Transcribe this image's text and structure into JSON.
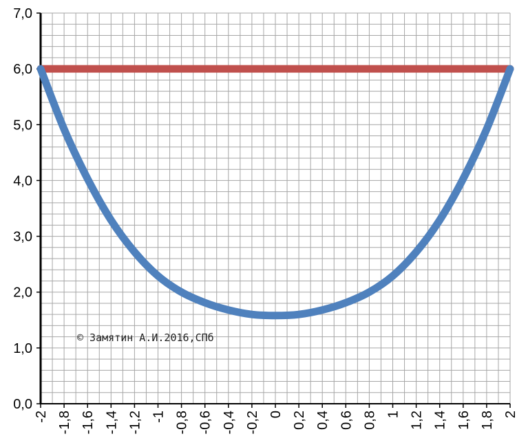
{
  "chart_data": {
    "type": "line",
    "title": "",
    "xlabel": "",
    "ylabel": "",
    "x": [
      -2,
      -1.8,
      -1.6,
      -1.4,
      -1.2,
      -1,
      -0.8,
      -0.6,
      -0.4,
      -0.2,
      0,
      0.2,
      0.4,
      0.6,
      0.8,
      1,
      1.2,
      1.4,
      1.6,
      1.8,
      2
    ],
    "x_tick_labels": [
      "-2",
      "-1,8",
      "-1,6",
      "-1,4",
      "-1,2",
      "-1",
      "-0,8",
      "-0,6",
      "-0,4",
      "-0,2",
      "0",
      "0,2",
      "0,4",
      "0,6",
      "0,8",
      "1",
      "1,2",
      "1,4",
      "1,6",
      "1,8",
      "2"
    ],
    "y_ticks": [
      0,
      1,
      2,
      3,
      4,
      5,
      6,
      7
    ],
    "y_tick_labels": [
      "0,0",
      "1,0",
      "2,0",
      "3,0",
      "4,0",
      "5,0",
      "6,0",
      "7,0"
    ],
    "ylim": [
      0,
      7
    ],
    "xlim": [
      -2,
      2
    ],
    "grid": true,
    "legend": "none",
    "series": [
      {
        "color": "#4f81bd",
        "values": [
          6.0,
          4.92,
          4.03,
          3.29,
          2.72,
          2.29,
          2.0,
          1.81,
          1.68,
          1.6,
          1.58,
          1.6,
          1.68,
          1.81,
          2.0,
          2.29,
          2.72,
          3.29,
          4.03,
          4.92,
          6.0
        ]
      },
      {
        "color": "#c0504d",
        "values": [
          6,
          6,
          6,
          6,
          6,
          6,
          6,
          6,
          6,
          6,
          6,
          6,
          6,
          6,
          6,
          6,
          6,
          6,
          6,
          6,
          6
        ]
      }
    ],
    "annotations": [
      {
        "text": "© Замятин А.И.2016,СПб"
      }
    ],
    "colors": {
      "grid": "#a6a6a6",
      "axis": "#000000",
      "background": "#ffffff"
    }
  }
}
